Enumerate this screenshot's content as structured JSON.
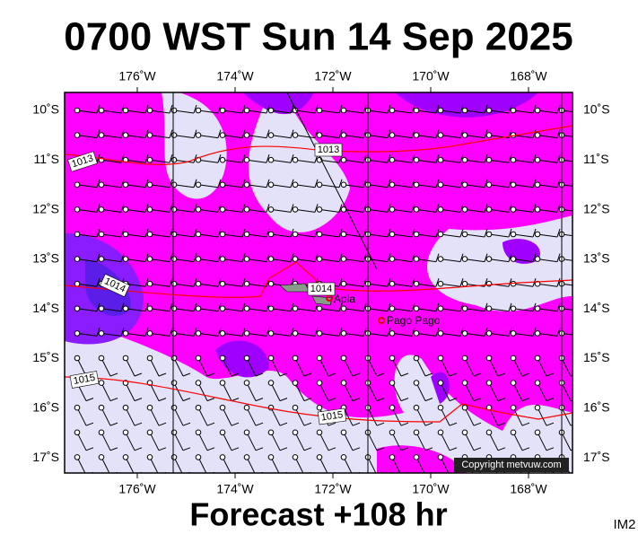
{
  "header": {
    "title": "0700 WST Sun 14 Sep 2025"
  },
  "map": {
    "lon_labels": [
      "176˚W",
      "174˚W",
      "172˚W",
      "170˚W",
      "168˚W"
    ],
    "lat_labels": [
      "10˚S",
      "11˚S",
      "12˚S",
      "13˚S",
      "14˚S",
      "15˚S",
      "16˚S",
      "17˚S"
    ],
    "places": [
      {
        "label": "Apia"
      },
      {
        "label": "Pago Pago"
      }
    ],
    "isobars": [
      {
        "label": "1013"
      },
      {
        "label": "1013"
      },
      {
        "label": "1014"
      },
      {
        "label": "1014"
      },
      {
        "label": "1015"
      },
      {
        "label": "1015"
      }
    ],
    "copyright": "Copyright metvuw.com"
  },
  "footer": {
    "forecast": "Forecast +108 hr",
    "id": "IM2"
  }
}
